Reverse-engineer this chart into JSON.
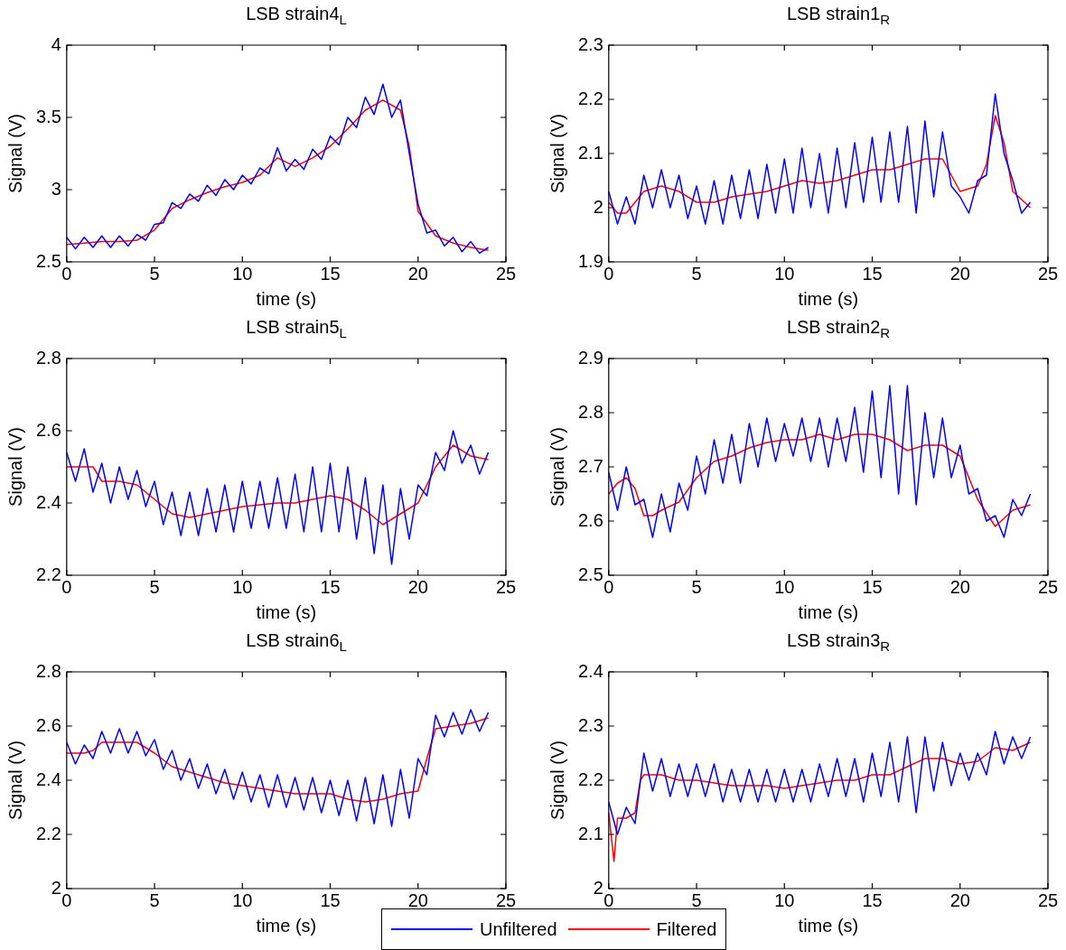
{
  "chart_data": [
    {
      "type": "line",
      "title": "LSB strain4$_{L}$",
      "xlabel": "time (s)",
      "ylabel": "Signal (V)",
      "xlim": [
        0,
        25
      ],
      "xticks": [
        0,
        5,
        10,
        15,
        20,
        25
      ],
      "ylim": [
        2.5,
        4
      ],
      "yticks": [
        2.5,
        3,
        3.5,
        4
      ],
      "x": [
        0,
        0.5,
        1,
        1.5,
        2,
        2.5,
        3,
        3.5,
        4,
        4.5,
        5,
        5.5,
        6,
        6.5,
        7,
        7.5,
        8,
        8.5,
        9,
        9.5,
        10,
        10.5,
        11,
        11.5,
        12,
        12.5,
        13,
        13.5,
        14,
        14.5,
        15,
        15.5,
        16,
        16.5,
        17,
        17.5,
        18,
        18.5,
        19,
        19.5,
        20,
        20.5,
        21,
        21.5,
        22,
        22.5,
        23,
        23.5,
        24
      ],
      "series": [
        {
          "color": "#0000ff",
          "values": [
            2.67,
            2.59,
            2.67,
            2.6,
            2.68,
            2.6,
            2.68,
            2.61,
            2.69,
            2.65,
            2.76,
            2.77,
            2.91,
            2.87,
            2.97,
            2.92,
            3.03,
            2.96,
            3.07,
            3,
            3.1,
            3.04,
            3.15,
            3.11,
            3.29,
            3.13,
            3.21,
            3.14,
            3.28,
            3.21,
            3.37,
            3.31,
            3.5,
            3.43,
            3.64,
            3.52,
            3.73,
            3.5,
            3.62,
            3.25,
            2.9,
            2.7,
            2.72,
            2.61,
            2.67,
            2.57,
            2.64,
            2.56,
            2.6
          ]
        },
        {
          "color": "#ff0000",
          "x": [
            0,
            1,
            2,
            3,
            4,
            5,
            6,
            7,
            8,
            9,
            10,
            11,
            12,
            13,
            14,
            15,
            16,
            17,
            18,
            19,
            19.5,
            20,
            21,
            22,
            23,
            24
          ],
          "values": [
            2.62,
            2.63,
            2.64,
            2.64,
            2.65,
            2.72,
            2.87,
            2.93,
            2.98,
            3.02,
            3.05,
            3.1,
            3.22,
            3.16,
            3.22,
            3.3,
            3.42,
            3.55,
            3.62,
            3.55,
            3.3,
            2.85,
            2.68,
            2.63,
            2.6,
            2.58
          ]
        }
      ]
    },
    {
      "type": "line",
      "title": "LSB strain1$_{R}$",
      "xlabel": "time (s)",
      "ylabel": "Signal (V)",
      "xlim": [
        0,
        25
      ],
      "xticks": [
        0,
        5,
        10,
        15,
        20,
        25
      ],
      "ylim": [
        1.9,
        2.3
      ],
      "yticks": [
        1.9,
        2,
        2.1,
        2.2,
        2.3
      ],
      "x": [
        0,
        0.5,
        1,
        1.5,
        2,
        2.5,
        3,
        3.5,
        4,
        4.5,
        5,
        5.5,
        6,
        6.5,
        7,
        7.5,
        8,
        8.5,
        9,
        9.5,
        10,
        10.5,
        11,
        11.5,
        12,
        12.5,
        13,
        13.5,
        14,
        14.5,
        15,
        15.5,
        16,
        16.5,
        17,
        17.5,
        18,
        18.5,
        19,
        19.5,
        20,
        20.5,
        21,
        21.5,
        22,
        22.5,
        23,
        23.5,
        24
      ],
      "series": [
        {
          "color": "#0000ff",
          "values": [
            2.03,
            1.97,
            2.02,
            1.97,
            2.06,
            2,
            2.07,
            2,
            2.06,
            1.98,
            2.04,
            1.97,
            2.05,
            1.97,
            2.06,
            1.98,
            2.07,
            1.98,
            2.08,
            1.99,
            2.09,
            1.99,
            2.11,
            2,
            2.1,
            1.99,
            2.11,
            2,
            2.12,
            2.01,
            2.13,
            2.01,
            2.14,
            2.01,
            2.15,
            1.99,
            2.16,
            2.02,
            2.14,
            2.04,
            2.02,
            1.99,
            2.05,
            2.06,
            2.21,
            2.1,
            2.05,
            1.99,
            2.01
          ]
        },
        {
          "color": "#ff0000",
          "x": [
            0,
            0.5,
            1,
            2,
            3,
            4,
            5,
            6,
            7,
            8,
            9,
            10,
            11,
            12,
            13,
            14,
            15,
            16,
            17,
            18,
            19,
            20,
            21,
            21.5,
            22,
            22.5,
            23,
            24
          ],
          "values": [
            2.01,
            1.99,
            1.99,
            2.03,
            2.04,
            2.03,
            2.01,
            2.01,
            2.02,
            2.025,
            2.03,
            2.04,
            2.05,
            2.045,
            2.05,
            2.06,
            2.07,
            2.07,
            2.08,
            2.09,
            2.09,
            2.03,
            2.04,
            2.08,
            2.17,
            2.12,
            2.03,
            2
          ]
        }
      ]
    },
    {
      "type": "line",
      "title": "LSB strain5$_{L}$",
      "xlabel": "time (s)",
      "ylabel": "Signal (V)",
      "xlim": [
        0,
        25
      ],
      "xticks": [
        0,
        5,
        10,
        15,
        20,
        25
      ],
      "ylim": [
        2.2,
        2.8
      ],
      "yticks": [
        2.2,
        2.4,
        2.6,
        2.8
      ],
      "x": [
        0,
        0.5,
        1,
        1.5,
        2,
        2.5,
        3,
        3.5,
        4,
        4.5,
        5,
        5.5,
        6,
        6.5,
        7,
        7.5,
        8,
        8.5,
        9,
        9.5,
        10,
        10.5,
        11,
        11.5,
        12,
        12.5,
        13,
        13.5,
        14,
        14.5,
        15,
        15.5,
        16,
        16.5,
        17,
        17.5,
        18,
        18.5,
        19,
        19.5,
        20,
        20.5,
        21,
        21.5,
        22,
        22.5,
        23,
        23.5,
        24
      ],
      "series": [
        {
          "color": "#0000ff",
          "values": [
            2.54,
            2.46,
            2.55,
            2.43,
            2.51,
            2.4,
            2.5,
            2.41,
            2.49,
            2.39,
            2.46,
            2.34,
            2.43,
            2.31,
            2.43,
            2.31,
            2.44,
            2.32,
            2.45,
            2.32,
            2.46,
            2.33,
            2.46,
            2.33,
            2.47,
            2.33,
            2.48,
            2.32,
            2.5,
            2.32,
            2.51,
            2.32,
            2.5,
            2.3,
            2.47,
            2.26,
            2.45,
            2.23,
            2.44,
            2.3,
            2.45,
            2.42,
            2.54,
            2.49,
            2.6,
            2.51,
            2.56,
            2.48,
            2.54
          ]
        },
        {
          "color": "#ff0000",
          "x": [
            0,
            1,
            1.5,
            2,
            3,
            4,
            5,
            6,
            7,
            8,
            9,
            10,
            11,
            12,
            13,
            14,
            15,
            16,
            17,
            18,
            19,
            20,
            21,
            22,
            23,
            24
          ],
          "values": [
            2.5,
            2.5,
            2.5,
            2.46,
            2.46,
            2.45,
            2.41,
            2.37,
            2.36,
            2.37,
            2.38,
            2.39,
            2.395,
            2.4,
            2.4,
            2.41,
            2.42,
            2.41,
            2.38,
            2.34,
            2.37,
            2.4,
            2.5,
            2.56,
            2.53,
            2.52
          ]
        }
      ]
    },
    {
      "type": "line",
      "title": "LSB strain2$_{R}$",
      "xlabel": "time (s)",
      "ylabel": "Signal (V)",
      "xlim": [
        0,
        25
      ],
      "xticks": [
        0,
        5,
        10,
        15,
        20,
        25
      ],
      "ylim": [
        2.5,
        2.9
      ],
      "yticks": [
        2.5,
        2.6,
        2.7,
        2.8,
        2.9
      ],
      "x": [
        0,
        0.5,
        1,
        1.5,
        2,
        2.5,
        3,
        3.5,
        4,
        4.5,
        5,
        5.5,
        6,
        6.5,
        7,
        7.5,
        8,
        8.5,
        9,
        9.5,
        10,
        10.5,
        11,
        11.5,
        12,
        12.5,
        13,
        13.5,
        14,
        14.5,
        15,
        15.5,
        16,
        16.5,
        17,
        17.5,
        18,
        18.5,
        19,
        19.5,
        20,
        20.5,
        21,
        21.5,
        22,
        22.5,
        23,
        23.5,
        24
      ],
      "series": [
        {
          "color": "#0000ff",
          "values": [
            2.69,
            2.62,
            2.7,
            2.63,
            2.64,
            2.57,
            2.65,
            2.58,
            2.67,
            2.62,
            2.72,
            2.65,
            2.75,
            2.67,
            2.76,
            2.67,
            2.78,
            2.7,
            2.79,
            2.71,
            2.78,
            2.72,
            2.79,
            2.71,
            2.79,
            2.7,
            2.79,
            2.71,
            2.81,
            2.69,
            2.84,
            2.68,
            2.85,
            2.65,
            2.85,
            2.63,
            2.8,
            2.68,
            2.79,
            2.68,
            2.74,
            2.65,
            2.66,
            2.6,
            2.61,
            2.57,
            2.64,
            2.61,
            2.65
          ]
        },
        {
          "color": "#ff0000",
          "x": [
            0,
            0.5,
            1,
            1.5,
            2,
            2.5,
            3,
            4,
            5,
            6,
            7,
            8,
            9,
            10,
            11,
            12,
            13,
            14,
            15,
            16,
            17,
            18,
            19,
            20,
            21,
            22,
            23,
            24
          ],
          "values": [
            2.65,
            2.67,
            2.68,
            2.66,
            2.61,
            2.61,
            2.62,
            2.635,
            2.68,
            2.71,
            2.72,
            2.735,
            2.745,
            2.75,
            2.75,
            2.76,
            2.75,
            2.76,
            2.76,
            2.75,
            2.73,
            2.74,
            2.74,
            2.72,
            2.64,
            2.59,
            2.62,
            2.63
          ]
        }
      ]
    },
    {
      "type": "line",
      "title": "LSB strain6$_{L}$",
      "xlabel": "time (s)",
      "ylabel": "Signal (V)",
      "xlim": [
        0,
        25
      ],
      "xticks": [
        0,
        5,
        10,
        15,
        20,
        25
      ],
      "ylim": [
        2,
        2.8
      ],
      "yticks": [
        2,
        2.2,
        2.4,
        2.6,
        2.8
      ],
      "legend": "bottom",
      "x": [
        0,
        0.5,
        1,
        1.5,
        2,
        2.5,
        3,
        3.5,
        4,
        4.5,
        5,
        5.5,
        6,
        6.5,
        7,
        7.5,
        8,
        8.5,
        9,
        9.5,
        10,
        10.5,
        11,
        11.5,
        12,
        12.5,
        13,
        13.5,
        14,
        14.5,
        15,
        15.5,
        16,
        16.5,
        17,
        17.5,
        18,
        18.5,
        19,
        19.5,
        20,
        20.5,
        21,
        21.5,
        22,
        22.5,
        23,
        23.5,
        24
      ],
      "series": [
        {
          "name": "Unfiltered",
          "color": "#0000ff",
          "values": [
            2.54,
            2.46,
            2.53,
            2.48,
            2.58,
            2.5,
            2.59,
            2.5,
            2.58,
            2.49,
            2.55,
            2.44,
            2.51,
            2.4,
            2.48,
            2.37,
            2.46,
            2.35,
            2.44,
            2.33,
            2.43,
            2.32,
            2.42,
            2.3,
            2.42,
            2.3,
            2.41,
            2.29,
            2.41,
            2.28,
            2.4,
            2.27,
            2.4,
            2.25,
            2.41,
            2.24,
            2.42,
            2.23,
            2.44,
            2.26,
            2.48,
            2.42,
            2.64,
            2.56,
            2.65,
            2.57,
            2.66,
            2.58,
            2.65
          ]
        },
        {
          "name": "Filtered",
          "color": "#ff0000",
          "x": [
            0,
            1,
            1.5,
            2,
            3,
            4,
            5,
            6,
            7,
            8,
            9,
            10,
            11,
            12,
            13,
            14,
            15,
            16,
            17,
            18,
            19,
            20,
            20.5,
            21,
            22,
            23,
            24
          ],
          "values": [
            2.5,
            2.5,
            2.51,
            2.54,
            2.54,
            2.54,
            2.5,
            2.45,
            2.43,
            2.41,
            2.39,
            2.38,
            2.37,
            2.36,
            2.35,
            2.35,
            2.35,
            2.33,
            2.32,
            2.33,
            2.35,
            2.36,
            2.48,
            2.59,
            2.6,
            2.61,
            2.63
          ]
        }
      ]
    },
    {
      "type": "line",
      "title": "LSB strain3$_{R}$",
      "xlabel": "time (s)",
      "ylabel": "Signal (V)",
      "xlim": [
        0,
        25
      ],
      "xticks": [
        0,
        5,
        10,
        15,
        20,
        25
      ],
      "ylim": [
        2,
        2.4
      ],
      "yticks": [
        2,
        2.1,
        2.2,
        2.3,
        2.4
      ],
      "x": [
        0,
        0.5,
        1,
        1.5,
        2,
        2.5,
        3,
        3.5,
        4,
        4.5,
        5,
        5.5,
        6,
        6.5,
        7,
        7.5,
        8,
        8.5,
        9,
        9.5,
        10,
        10.5,
        11,
        11.5,
        12,
        12.5,
        13,
        13.5,
        14,
        14.5,
        15,
        15.5,
        16,
        16.5,
        17,
        17.5,
        18,
        18.5,
        19,
        19.5,
        20,
        20.5,
        21,
        21.5,
        22,
        22.5,
        23,
        23.5,
        24
      ],
      "series": [
        {
          "color": "#0000ff",
          "values": [
            2.16,
            2.1,
            2.15,
            2.12,
            2.25,
            2.18,
            2.24,
            2.17,
            2.23,
            2.17,
            2.23,
            2.17,
            2.23,
            2.16,
            2.22,
            2.16,
            2.22,
            2.16,
            2.22,
            2.16,
            2.22,
            2.16,
            2.22,
            2.16,
            2.23,
            2.17,
            2.24,
            2.17,
            2.24,
            2.16,
            2.25,
            2.17,
            2.27,
            2.16,
            2.28,
            2.14,
            2.28,
            2.18,
            2.27,
            2.19,
            2.25,
            2.2,
            2.25,
            2.21,
            2.29,
            2.23,
            2.28,
            2.24,
            2.28
          ]
        },
        {
          "color": "#ff0000",
          "x": [
            0,
            0.3,
            0.5,
            1,
            1.5,
            1.8,
            2,
            3,
            4,
            5,
            6,
            7,
            8,
            9,
            10,
            11,
            12,
            13,
            14,
            15,
            16,
            17,
            18,
            19,
            20,
            21,
            22,
            23,
            24
          ],
          "values": [
            2.14,
            2.05,
            2.13,
            2.13,
            2.14,
            2.2,
            2.21,
            2.21,
            2.2,
            2.2,
            2.195,
            2.19,
            2.19,
            2.19,
            2.185,
            2.19,
            2.195,
            2.2,
            2.2,
            2.21,
            2.21,
            2.225,
            2.24,
            2.24,
            2.23,
            2.235,
            2.26,
            2.255,
            2.27
          ]
        }
      ]
    }
  ]
}
